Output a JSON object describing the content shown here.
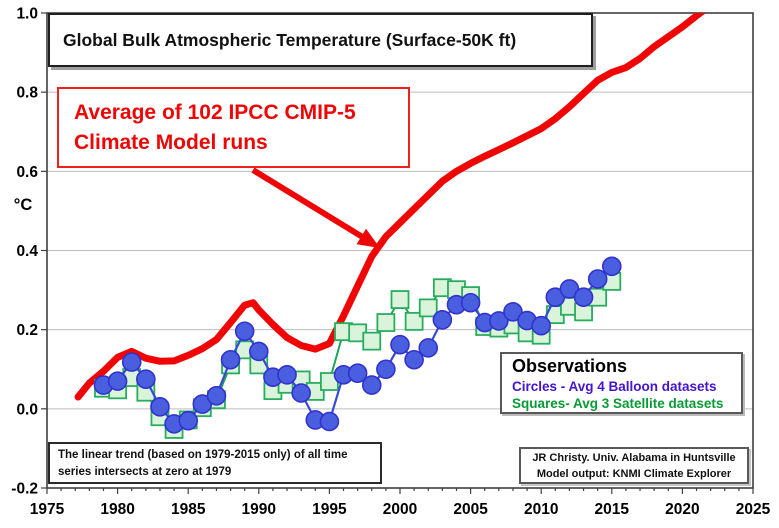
{
  "chart_meta": {
    "title": "Global Bulk Atmospheric Temperature (Surface-50K ft)",
    "ylabel": "°C",
    "annotation": {
      "line1": "Average of 102 IPCC CMIP-5",
      "line2": "Climate Model runs"
    },
    "legend": {
      "title": "Observations",
      "balloon": "Circles - Avg 4 Balloon datasets",
      "satellite": "Squares- Avg 3 Satellite datasets"
    },
    "note_left": {
      "line1": "The linear trend (based on 1979-2015 only) of all time",
      "line2": "series intersects at zero at 1979"
    },
    "credit": {
      "line1": "JR Christy. Univ. Alabama in Huntsville",
      "line2": "Model output: KNMI Climate Explorer"
    },
    "colors": {
      "model_line": "#f00505",
      "balloon_fill": "#4a5fe0",
      "balloon_stroke": "#3232cc",
      "balloon_line": "#3a4ad8",
      "satellite_fill": "#d9f4da",
      "satellite_stroke": "#28ad5f",
      "satellite_line": "#1ea556",
      "legend_balloon_text": "#4414cf",
      "legend_satellite_text": "#089b33",
      "grid": "#bdbdbd",
      "axis": "#3f3f3f",
      "annotation_red": "#ee0505"
    }
  },
  "chart_data": {
    "type": "line",
    "title": "Global Bulk Atmospheric Temperature (Surface-50K ft)",
    "xlabel": "",
    "ylabel": "°C",
    "xlim": [
      1975,
      2025
    ],
    "ylim": [
      -0.2,
      1.0
    ],
    "xticks": [
      1975,
      1980,
      1985,
      1990,
      1995,
      2000,
      2005,
      2010,
      2015,
      2020,
      2025
    ],
    "ytick_values": [
      -0.2,
      0.0,
      0.2,
      0.4,
      0.6,
      0.8,
      1.0
    ],
    "ytick_labels": [
      "-0.2",
      "0.0",
      "0.2",
      "0.4",
      "0.6",
      "0.8",
      "1.0"
    ],
    "grid": "horizontal-only",
    "legend_position": "inside-lower-right",
    "series": [
      {
        "name": "Average of 102 IPCC CMIP-5 Climate Model runs",
        "marker": "none",
        "color": "#f00505",
        "line_width": 7,
        "x": [
          1977.2,
          1978,
          1979,
          1980,
          1981,
          1982,
          1983,
          1984,
          1985,
          1986,
          1987,
          1988,
          1989,
          1989.6,
          1990,
          1991,
          1992,
          1993,
          1994,
          1995,
          1996,
          1997,
          1998,
          1999,
          2000,
          2001,
          2002,
          2003,
          2004,
          2005,
          2006,
          2007,
          2008,
          2009,
          2010,
          2011,
          2012,
          2013,
          2014,
          2015,
          2016,
          2017,
          2018,
          2019,
          2020,
          2021,
          2021.7
        ],
        "y": [
          0.03,
          0.065,
          0.095,
          0.13,
          0.145,
          0.128,
          0.12,
          0.121,
          0.135,
          0.152,
          0.175,
          0.218,
          0.262,
          0.268,
          0.25,
          0.213,
          0.18,
          0.16,
          0.151,
          0.165,
          0.235,
          0.31,
          0.385,
          0.435,
          0.47,
          0.505,
          0.54,
          0.575,
          0.6,
          0.62,
          0.638,
          0.655,
          0.672,
          0.69,
          0.708,
          0.733,
          0.763,
          0.797,
          0.83,
          0.85,
          0.862,
          0.885,
          0.915,
          0.94,
          0.965,
          0.993,
          1.012
        ]
      },
      {
        "name": "Avg 3 Satellite datasets",
        "marker": "square",
        "color": "#1ea556",
        "line_width": 2,
        "marker_fill": "#d9f4da",
        "marker_stroke": "#28ad5f",
        "x": [
          1979,
          1980,
          1981,
          1982,
          1983,
          1984,
          1985,
          1986,
          1987,
          1988,
          1989,
          1990,
          1991,
          1992,
          1993,
          1994,
          1995,
          1996,
          1997,
          1998,
          1999,
          2000,
          2001,
          2002,
          2003,
          2004,
          2005,
          2006,
          2007,
          2008,
          2009,
          2010,
          2011,
          2012,
          2013,
          2014,
          2015
        ],
        "y": [
          0.052,
          0.048,
          0.079,
          0.042,
          -0.02,
          -0.052,
          -0.028,
          0.003,
          0.023,
          0.111,
          0.149,
          0.111,
          0.046,
          0.062,
          0.073,
          0.044,
          0.069,
          0.195,
          0.192,
          0.171,
          0.218,
          0.276,
          0.221,
          0.255,
          0.306,
          0.301,
          0.286,
          0.208,
          0.204,
          0.212,
          0.192,
          0.186,
          0.238,
          0.259,
          0.245,
          0.282,
          0.322
        ]
      },
      {
        "name": "Avg 4 Balloon datasets",
        "marker": "circle",
        "color": "#3a4ad8",
        "line_width": 2.2,
        "marker_fill": "#4a5fe0",
        "marker_stroke": "#3232cc",
        "x": [
          1979,
          1980,
          1981,
          1982,
          1983,
          1984,
          1985,
          1986,
          1987,
          1988,
          1989,
          1990,
          1991,
          1992,
          1993,
          1994,
          1995,
          1996,
          1997,
          1998,
          1999,
          2000,
          2001,
          2002,
          2003,
          2004,
          2005,
          2006,
          2007,
          2008,
          2009,
          2010,
          2011,
          2012,
          2013,
          2014,
          2015
        ],
        "y": [
          0.06,
          0.07,
          0.118,
          0.075,
          0.005,
          -0.038,
          -0.03,
          0.012,
          0.033,
          0.124,
          0.196,
          0.145,
          0.08,
          0.086,
          0.04,
          -0.028,
          -0.032,
          0.086,
          0.09,
          0.06,
          0.1,
          0.162,
          0.124,
          0.154,
          0.225,
          0.263,
          0.268,
          0.218,
          0.222,
          0.245,
          0.223,
          0.21,
          0.282,
          0.303,
          0.282,
          0.328,
          0.36
        ]
      }
    ]
  }
}
